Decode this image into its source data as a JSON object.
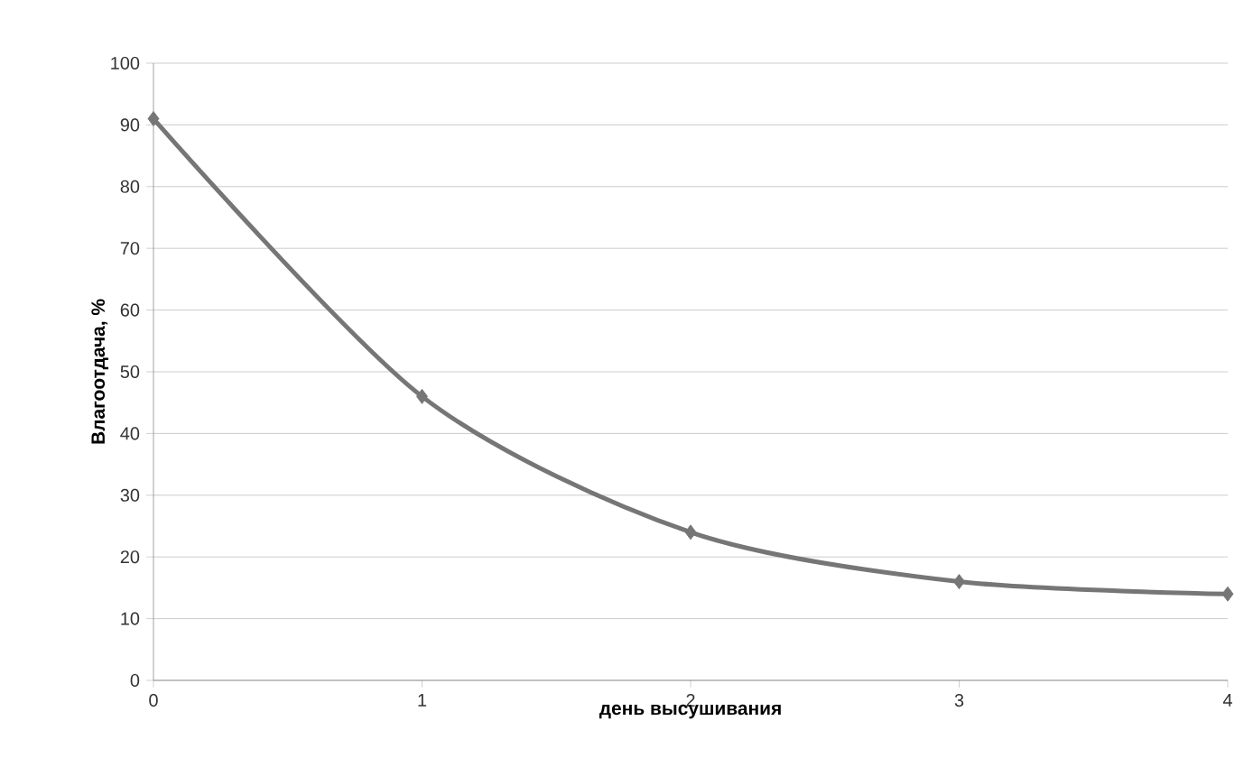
{
  "chart_data": {
    "type": "line",
    "xlabel": "день высушивания",
    "ylabel": "Влагоотдача, %",
    "x": [
      0,
      1,
      2,
      3,
      4
    ],
    "series": [
      {
        "color": "#767676",
        "values": [
          91,
          46,
          24,
          16,
          14
        ]
      }
    ],
    "xlim": [
      0,
      4
    ],
    "xticks": [
      0,
      1,
      2,
      3,
      4
    ],
    "ylim": [
      0,
      100
    ],
    "yticks": [
      0,
      10,
      20,
      30,
      40,
      50,
      60,
      70,
      80,
      90,
      100
    ],
    "grid": "y",
    "marker": "diamond",
    "line_style": "solid"
  }
}
